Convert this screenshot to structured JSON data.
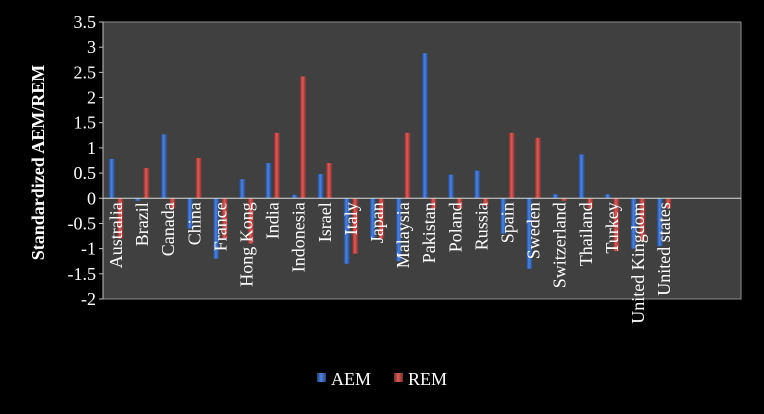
{
  "chart_data": {
    "type": "bar",
    "ylabel": "Standardized AEM/REM",
    "xlabel": "",
    "ylim": [
      -2,
      3.5
    ],
    "ytick_step": 0.5,
    "yticks": [
      "-2",
      "-1.5",
      "-1",
      "-0.5",
      "0",
      "0.5",
      "1",
      "1.5",
      "2",
      "2.5",
      "3",
      "3.5"
    ],
    "categories": [
      "Australia",
      "Brazil",
      "Canada",
      "China",
      "France",
      "Hong Kong",
      "India",
      "Indonesia",
      "Israel",
      "Italy",
      "Japan",
      "Malaysia",
      "Pakistan",
      "Poland",
      "Russia",
      "Spain",
      "Sweden",
      "Switzerland",
      "Thailand",
      "Turkey",
      "United Kingdom",
      "United states"
    ],
    "series": [
      {
        "name": "AEM",
        "color": "#4472c4",
        "values": [
          0.78,
          -0.05,
          1.27,
          -0.6,
          -1.2,
          0.38,
          0.7,
          0.07,
          0.48,
          -1.3,
          -0.8,
          -1.25,
          2.88,
          0.47,
          0.55,
          -0.7,
          -1.4,
          0.08,
          0.87,
          0.08,
          -1.0,
          -0.95
        ]
      },
      {
        "name": "REM",
        "color": "#c0504d",
        "values": [
          -0.8,
          0.6,
          -0.2,
          0.8,
          -0.8,
          -0.9,
          1.3,
          2.42,
          0.7,
          -1.1,
          -0.8,
          1.3,
          -0.2,
          -0.2,
          -0.15,
          1.3,
          1.2,
          -0.05,
          -0.2,
          -1.05,
          -0.85,
          -0.2
        ]
      }
    ],
    "legend_position": "bottom",
    "grid": false
  }
}
